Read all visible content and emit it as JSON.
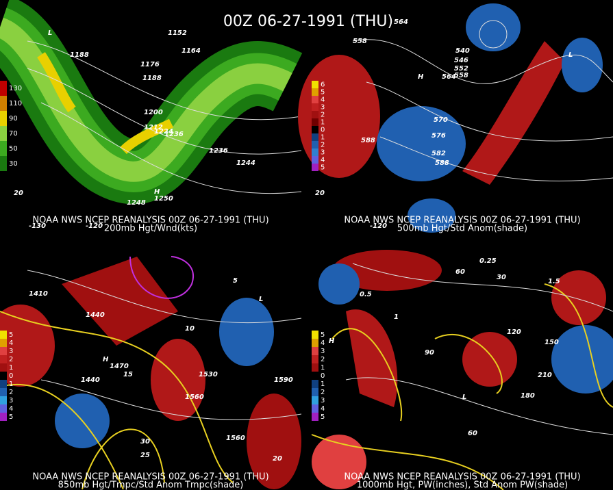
{
  "title": "00Z 06-27-1991 (THU)",
  "panels": [
    {
      "caption_line1": "NOAA NWS NCEP REANALYSIS 00Z 06-27-1991 (THU)",
      "caption_line2": "200mb Hgt/Wnd(kts)",
      "legend": [
        "130",
        "110",
        "90",
        "70",
        "50",
        "30"
      ],
      "legend_colors": [
        "#c00000",
        "#d08000",
        "#e8d000",
        "#8ad040",
        "#3caa20",
        "#1a7a10"
      ],
      "labels": [
        "1152",
        "1164",
        "1176",
        "1188",
        "1200",
        "1212",
        "1224",
        "1236",
        "1248",
        "1188",
        "1236",
        "1244",
        "1250",
        "H",
        "L",
        "-130",
        "-120",
        "20"
      ]
    },
    {
      "caption_line1": "NOAA NWS NCEP REANALYSIS 00Z 06-27-1991 (THU)",
      "caption_line2": "500mb Hgt/Std Anom(shade)",
      "legend": [
        "6",
        "5",
        "4",
        "3",
        "2",
        "1",
        "0",
        "1",
        "2",
        "3",
        "4",
        "5"
      ],
      "legend_colors": [
        "#f0e000",
        "#e0a000",
        "#e04040",
        "#c02020",
        "#a01010",
        "#700000",
        "#000000",
        "#104080",
        "#2060b0",
        "#3080d0",
        "#6060e0",
        "#a020c0"
      ],
      "labels": [
        "558",
        "564",
        "540",
        "546",
        "552",
        "558",
        "564",
        "570",
        "576",
        "582",
        "588",
        "588",
        "H",
        "L",
        "-120",
        "20"
      ]
    },
    {
      "caption_line1": "NOAA NWS NCEP REANALYSIS 00Z 06-27-1991 (THU)",
      "caption_line2": "850mb Hgt/Tmpc/Std Anom Tmpc(shade)",
      "legend": [
        "5",
        "4",
        "3",
        "2",
        "1",
        "0",
        "1",
        "2",
        "3",
        "4",
        "5"
      ],
      "legend_colors": [
        "#f0e000",
        "#e0a000",
        "#e04040",
        "#c02020",
        "#a01010",
        "#000000",
        "#104080",
        "#2060b0",
        "#30a0e0",
        "#6060e0",
        "#a020c0"
      ],
      "labels": [
        "1410",
        "1440",
        "1440",
        "1530",
        "1560",
        "1590",
        "1470",
        "1560",
        "5",
        "10",
        "15",
        "20",
        "25",
        "30",
        "H",
        "L"
      ]
    },
    {
      "caption_line1": "NOAA NWS NCEP REANALYSIS 00Z 06-27-1991 (THU)",
      "caption_line2": "1000mb Hgt, PW(inches), Std Anom PW(shade)",
      "legend": [
        "5",
        "4",
        "3",
        "2",
        "1",
        "0",
        "1",
        "2",
        "3",
        "4",
        "5"
      ],
      "legend_colors": [
        "#f0e000",
        "#e0a000",
        "#e04040",
        "#c02020",
        "#a01010",
        "#000000",
        "#104080",
        "#2060b0",
        "#30a0e0",
        "#6060e0",
        "#a020c0"
      ],
      "labels": [
        "0.25",
        "0.5",
        "1",
        "1.5",
        "30",
        "60",
        "90",
        "120",
        "150",
        "180",
        "210",
        "H",
        "L",
        "60"
      ]
    }
  ]
}
